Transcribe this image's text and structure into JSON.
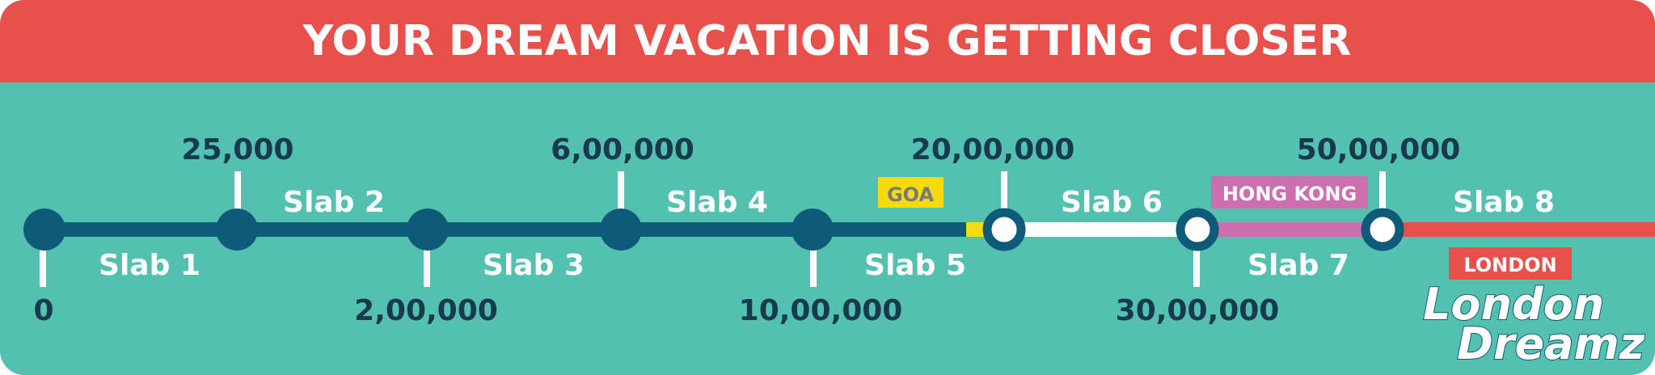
{
  "header": {
    "title": "YOUR DREAM VACATION IS GETTING CLOSER"
  },
  "milestones": [
    {
      "label": "0"
    },
    {
      "label": "25,000"
    },
    {
      "label": "2,00,000"
    },
    {
      "label": "6,00,000"
    },
    {
      "label": "10,00,000"
    },
    {
      "label": "20,00,000"
    },
    {
      "label": "30,00,000"
    },
    {
      "label": "50,00,000"
    }
  ],
  "slabs": [
    {
      "label": "Slab 1"
    },
    {
      "label": "Slab 2"
    },
    {
      "label": "Slab 3"
    },
    {
      "label": "Slab 4"
    },
    {
      "label": "Slab 5"
    },
    {
      "label": "Slab 6"
    },
    {
      "label": "Slab 7"
    },
    {
      "label": "Slab 8"
    }
  ],
  "destinations": {
    "goa": "GOA",
    "hong_kong": "HONG KONG",
    "london": "LONDON"
  },
  "logo": {
    "line1": "London",
    "line2": "Dreamz"
  },
  "colors": {
    "header_red": "#E8504B",
    "teal_bg": "#54C1B0",
    "track_dark": "#0F5A78",
    "text_dark": "#173A4E",
    "goa_yellow": "#F5DB0C",
    "hong_kong_pink": "#CC6EAF",
    "london_red": "#E8504B",
    "white": "#FFFFFF"
  }
}
